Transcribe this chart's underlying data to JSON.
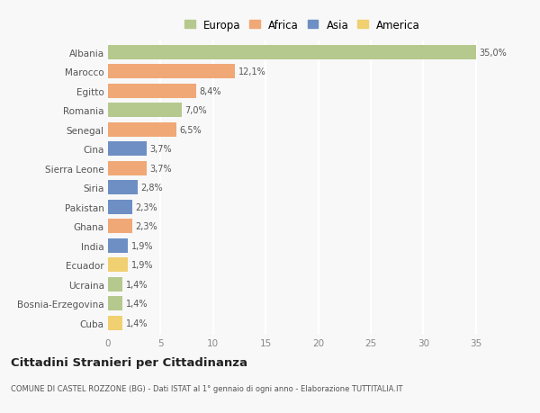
{
  "categories": [
    "Albania",
    "Marocco",
    "Egitto",
    "Romania",
    "Senegal",
    "Cina",
    "Sierra Leone",
    "Siria",
    "Pakistan",
    "Ghana",
    "India",
    "Ecuador",
    "Ucraina",
    "Bosnia-Erzegovina",
    "Cuba"
  ],
  "values": [
    35.0,
    12.1,
    8.4,
    7.0,
    6.5,
    3.7,
    3.7,
    2.8,
    2.3,
    2.3,
    1.9,
    1.9,
    1.4,
    1.4,
    1.4
  ],
  "labels": [
    "35,0%",
    "12,1%",
    "8,4%",
    "7,0%",
    "6,5%",
    "3,7%",
    "3,7%",
    "2,8%",
    "2,3%",
    "2,3%",
    "1,9%",
    "1,9%",
    "1,4%",
    "1,4%",
    "1,4%"
  ],
  "continent": [
    "Europa",
    "Africa",
    "Africa",
    "Europa",
    "Africa",
    "Asia",
    "Africa",
    "Asia",
    "Asia",
    "Africa",
    "Asia",
    "America",
    "Europa",
    "Europa",
    "America"
  ],
  "colors": {
    "Europa": "#b5c98e",
    "Africa": "#f0a877",
    "Asia": "#6d8fc4",
    "America": "#f0d070"
  },
  "legend_order": [
    "Europa",
    "Africa",
    "Asia",
    "America"
  ],
  "title": "Cittadini Stranieri per Cittadinanza",
  "subtitle": "COMUNE DI CASTEL ROZZONE (BG) - Dati ISTAT al 1° gennaio di ogni anno - Elaborazione TUTTITALIA.IT",
  "xlim": [
    0,
    37
  ],
  "bg_color": "#f8f8f8",
  "grid_color": "#ffffff",
  "bar_height": 0.75,
  "xticks": [
    0,
    5,
    10,
    15,
    20,
    25,
    30,
    35
  ]
}
